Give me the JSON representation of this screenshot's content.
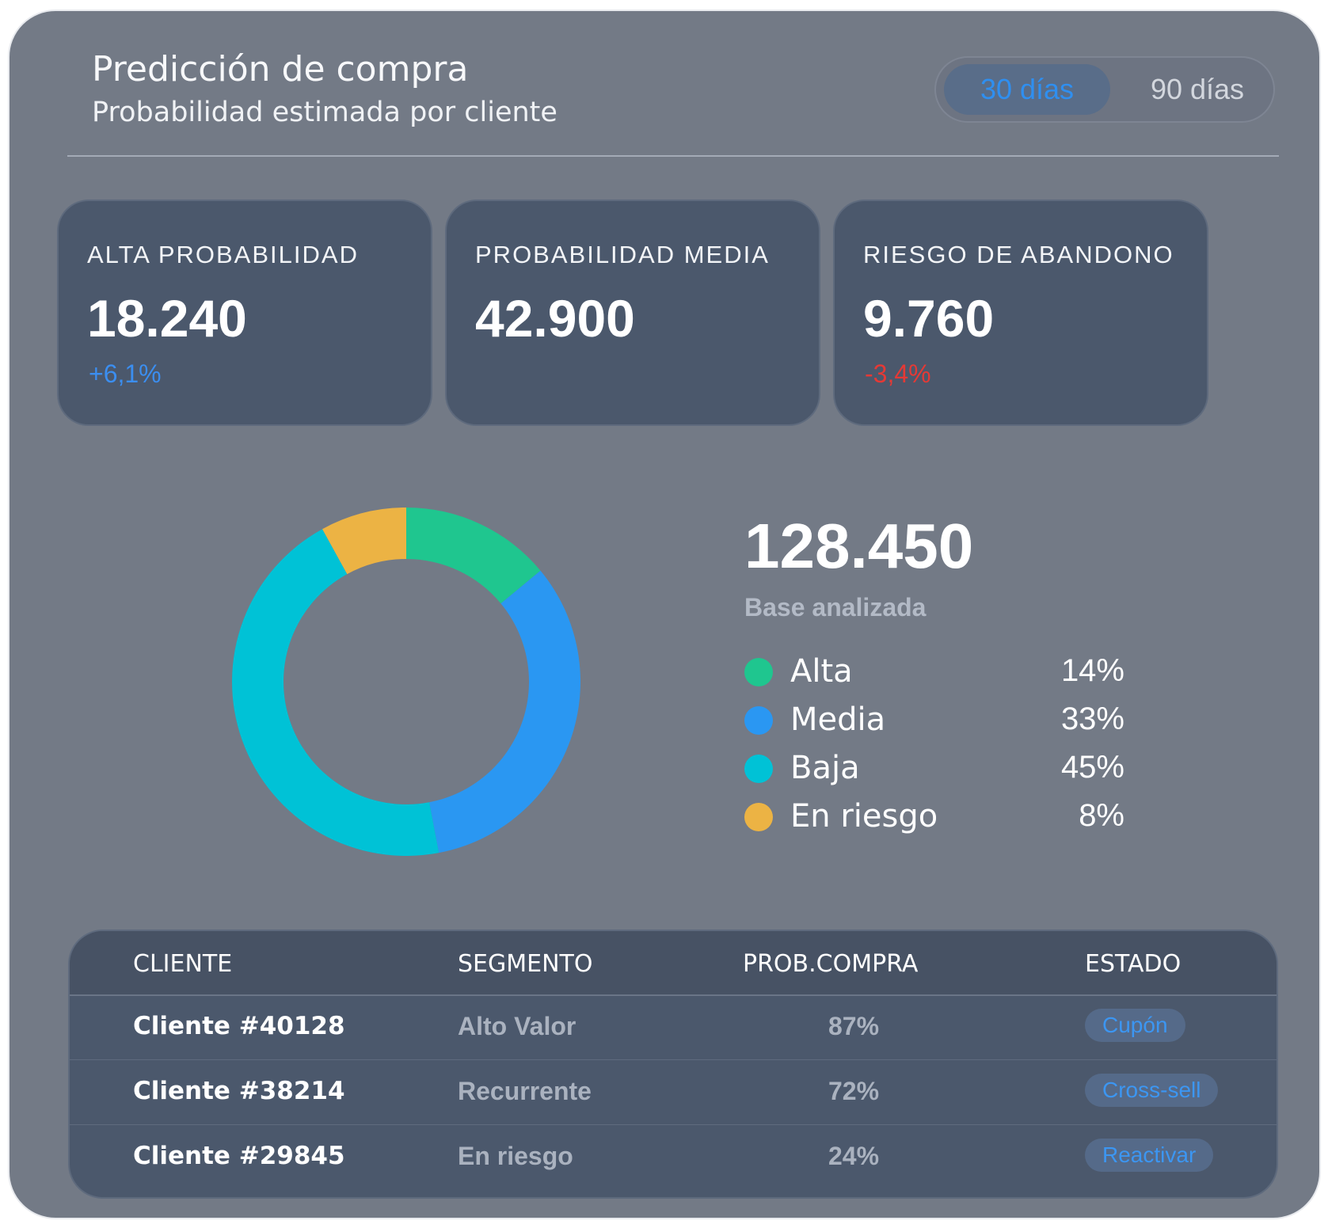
{
  "header": {
    "title": "Predicción de compra",
    "subtitle": "Probabilidad estimada por cliente",
    "range_options": [
      "30 días",
      "90 días"
    ],
    "range_selected": "30 días"
  },
  "kpis": [
    {
      "label": "ALTA PROBABILIDAD",
      "value": "18.240",
      "delta": "+6,1%",
      "delta_color": "#3b8ef0"
    },
    {
      "label": "PROBABILIDAD MEDIA",
      "value": "42.900",
      "delta": "",
      "delta_color": ""
    },
    {
      "label": "RIESGO DE ABANDONO",
      "value": "9.760",
      "delta": "-3,4%",
      "delta_color": "#e53935"
    }
  ],
  "summary": {
    "total": "128.450",
    "total_label": "Base analizada"
  },
  "chart_data": {
    "type": "pie",
    "categories": [
      "Alta",
      "Media",
      "Baja",
      "En riesgo"
    ],
    "values": [
      14,
      33,
      45,
      8
    ],
    "value_labels": [
      "14%",
      "33%",
      "45%",
      "8%"
    ],
    "colors": [
      "#1fc68f",
      "#2a97f2",
      "#00c2d6",
      "#ecb344"
    ],
    "donut": true
  },
  "table": {
    "headers": [
      "CLIENTE",
      "SEGMENTO",
      "PROB.COMPRA",
      "ESTADO"
    ],
    "rows": [
      {
        "client": "Cliente #40128",
        "segment": "Alto Valor",
        "prob": "87%",
        "status": "Cupón"
      },
      {
        "client": "Cliente #38214",
        "segment": "Recurrente",
        "prob": "72%",
        "status": "Cross-sell"
      },
      {
        "client": "Cliente #29845",
        "segment": "En riesgo",
        "prob": "24%",
        "status": "Reactivar"
      }
    ]
  },
  "colors": {
    "card_bg": "#737a86",
    "panel_bg": "#4b586c",
    "accent_blue": "#2f8ff0",
    "negative_red": "#e53935"
  }
}
